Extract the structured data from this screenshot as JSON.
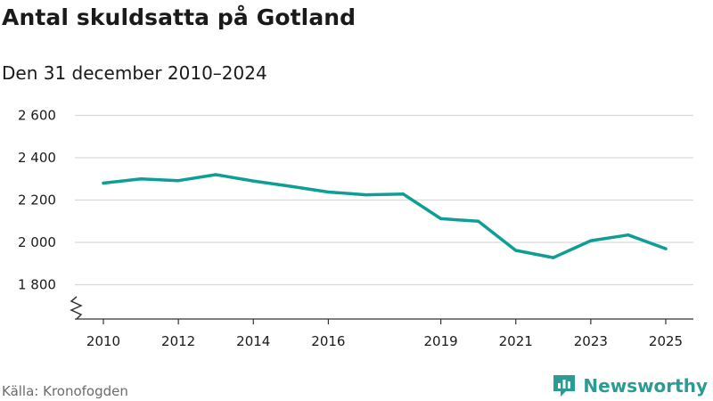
{
  "header": {
    "title": "Antal skuldsatta på Gotland",
    "subtitle": "Den 31 december 2010–2024"
  },
  "footer": {
    "source": "Källa: Kronofogden",
    "brand": "Newsworthy"
  },
  "colors": {
    "line": "#0e9e95",
    "grid": "#d9d9d9",
    "axis": "#333333",
    "brand": "#2a9c93"
  },
  "chart_data": {
    "type": "line",
    "title": "Antal skuldsatta på Gotland",
    "subtitle": "Den 31 december 2010–2024",
    "xlabel": "",
    "ylabel": "",
    "xlim": [
      2009.5,
      2025.5
    ],
    "ylim": [
      1650,
      2650
    ],
    "axis_break": true,
    "grid": true,
    "x_ticks": [
      2010,
      2012,
      2014,
      2016,
      2019,
      2021,
      2023,
      2025
    ],
    "y_ticks": [
      1800,
      2000,
      2200,
      2400,
      2600
    ],
    "y_tick_labels": [
      "1 800",
      "2 000",
      "2 200",
      "2 400",
      "2 600"
    ],
    "series": [
      {
        "name": "Antal skuldsatta",
        "x": [
          2010,
          2011,
          2012,
          2013,
          2014,
          2015,
          2016,
          2017,
          2018,
          2019,
          2020,
          2021,
          2022,
          2023,
          2024,
          2025
        ],
        "values": [
          2280,
          2300,
          2292,
          2320,
          2290,
          2265,
          2238,
          2225,
          2228,
          2112,
          2100,
          1962,
          1928,
          2008,
          2035,
          1970
        ]
      }
    ]
  }
}
